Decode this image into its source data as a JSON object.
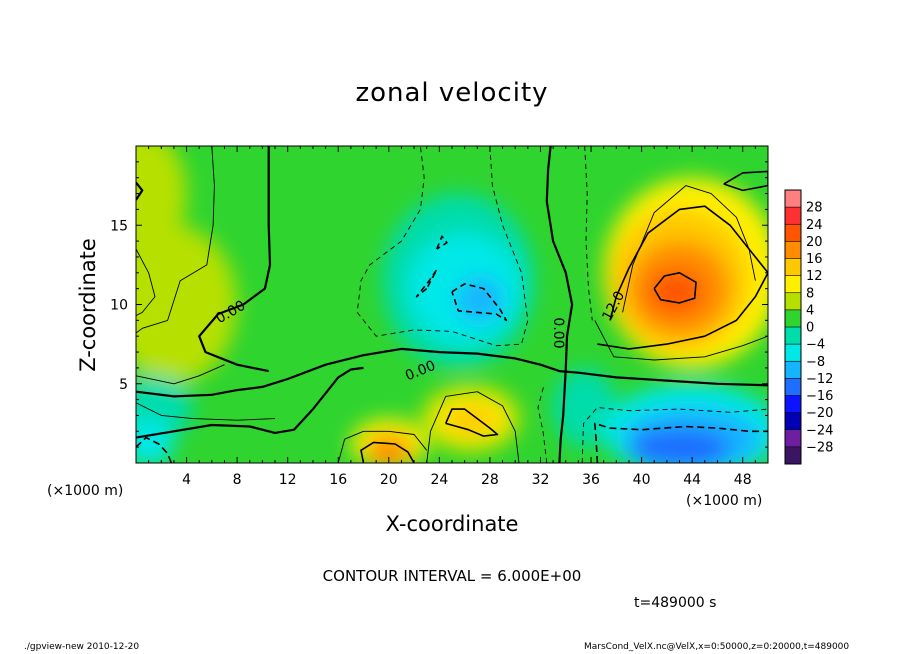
{
  "chart_data": {
    "type": "heatmap",
    "title": "zonal velocity",
    "xlabel": "X-coordinate",
    "ylabel": "Z-coordinate",
    "x_unit": "(×1000 m)",
    "xlim": [
      0,
      50
    ],
    "ylim": [
      0,
      20
    ],
    "x_ticks": [
      4,
      8,
      12,
      16,
      20,
      24,
      28,
      32,
      36,
      40,
      44,
      48
    ],
    "y_ticks": [
      5,
      10,
      15
    ],
    "contour_interval": "CONTOUR INTERVAL = 6.000E+00",
    "contour_labels": [
      {
        "text": "0.00",
        "x": 7.5,
        "z": 9.5,
        "angle": -30
      },
      {
        "text": "0.00",
        "x": 22.5,
        "z": 5.8,
        "angle": -22
      },
      {
        "text": "0.00",
        "x": 33.4,
        "z": 8.2,
        "angle": 90
      },
      {
        "text": "12.0",
        "x": 37.8,
        "z": 9.9,
        "angle": -62
      }
    ],
    "colorbar": {
      "labels": [
        "28",
        "24",
        "20",
        "16",
        "12",
        "8",
        "4",
        "0",
        "-4",
        "-8",
        "-12",
        "-16",
        "-20",
        "-24",
        "-28"
      ],
      "colors": [
        "#ff7f7f",
        "#ff3030",
        "#ff5400",
        "#ff8c00",
        "#ffc800",
        "#ffef00",
        "#b6e000",
        "#2fd42f",
        "#00dcaa",
        "#00e8e8",
        "#14b4ff",
        "#1e6eff",
        "#0a14ff",
        "#0000b4",
        "#6e1ea0",
        "#3c1464"
      ]
    },
    "fields": {
      "background": "#2fd42f",
      "blobs": [
        {
          "x": 0.5,
          "z": 17,
          "rx": 3.5,
          "rz": 4,
          "color": "#b6e000"
        },
        {
          "x": 3,
          "z": 10,
          "rx": 5,
          "rz": 5,
          "color": "#b6e000"
        },
        {
          "x": 1.5,
          "z": 3.5,
          "rx": 3,
          "rz": 2,
          "color": "#00dcaa"
        },
        {
          "x": 1,
          "z": 1.3,
          "rx": 2,
          "rz": 1.5,
          "color": "#00e8e8"
        },
        {
          "x": 25.5,
          "z": 11.5,
          "rx": 6,
          "rz": 5.5,
          "color": "#00dcaa"
        },
        {
          "x": 26,
          "z": 11,
          "rx": 4.5,
          "rz": 3.5,
          "color": "#00e8e8"
        },
        {
          "x": 27.2,
          "z": 10.3,
          "rx": 1.8,
          "rz": 1.4,
          "color": "#14b4ff"
        },
        {
          "x": 35.5,
          "z": 3.5,
          "rx": 2.5,
          "rz": 2.5,
          "color": "#00dcaa"
        },
        {
          "x": 44,
          "z": 2,
          "rx": 7,
          "rz": 3,
          "color": "#00e8e8"
        },
        {
          "x": 44,
          "z": 1.5,
          "rx": 5.5,
          "rz": 2,
          "color": "#14b4ff"
        },
        {
          "x": 43,
          "z": 0.9,
          "rx": 4,
          "rz": 1.3,
          "color": "#1e6eff"
        },
        {
          "x": 44,
          "z": 12,
          "rx": 7,
          "rz": 6,
          "color": "#ffef00"
        },
        {
          "x": 43,
          "z": 11.5,
          "rx": 5.5,
          "rz": 4.5,
          "color": "#ffc800"
        },
        {
          "x": 43,
          "z": 11,
          "rx": 4,
          "rz": 3,
          "color": "#ff8c00"
        },
        {
          "x": 42.7,
          "z": 10.8,
          "rx": 2.2,
          "rz": 1.4,
          "color": "#ff5400"
        },
        {
          "x": 26.5,
          "z": 2.8,
          "rx": 4,
          "rz": 2.2,
          "color": "#b6e000"
        },
        {
          "x": 26.5,
          "z": 2.8,
          "rx": 3,
          "rz": 1.5,
          "color": "#ffef00"
        },
        {
          "x": 26.5,
          "z": 2.7,
          "rx": 2,
          "rz": 0.9,
          "color": "#ffc800"
        },
        {
          "x": 20,
          "z": 1.2,
          "rx": 3,
          "rz": 1.6,
          "color": "#ffef00"
        },
        {
          "x": 20,
          "z": 0.8,
          "rx": 1.8,
          "rz": 1,
          "color": "#ff8c00"
        }
      ]
    }
  },
  "texts": {
    "time_label": "t=489000 s",
    "footer_left": "./gpview-new  2010-12-20",
    "footer_right": "MarsCond_VelX.nc@VelX,x=0:50000,z=0:20000,t=489000"
  }
}
